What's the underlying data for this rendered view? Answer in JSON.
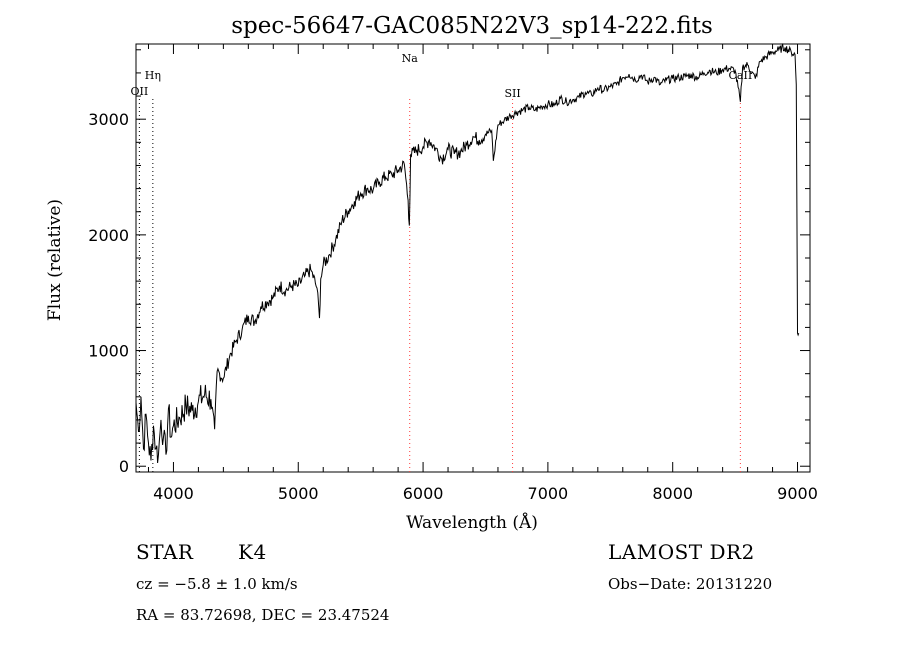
{
  "chart_data": {
    "type": "line",
    "title": "spec-56647-GAC085N22V3_sp14-222.fits",
    "xlabel": "Wavelength (Å)",
    "ylabel": "Flux (relative)",
    "xlim": [
      3700,
      9100
    ],
    "ylim": [
      -50,
      3650
    ],
    "x_ticks": [
      4000,
      5000,
      6000,
      7000,
      8000,
      9000
    ],
    "x_tick_labels": [
      "4000",
      "5000",
      "6000",
      "7000",
      "8000",
      "9000"
    ],
    "y_ticks": [
      0,
      1000,
      2000,
      3000
    ],
    "y_tick_labels": [
      "0",
      "1000",
      "2000",
      "3000"
    ],
    "grid": false,
    "series": [
      {
        "color": "#000000",
        "x": [
          3700,
          3720,
          3740,
          3760,
          3780,
          3800,
          3820,
          3840,
          3860,
          3880,
          3900,
          3920,
          3940,
          3960,
          3980,
          4000,
          4050,
          4100,
          4150,
          4200,
          4250,
          4300,
          4330,
          4350,
          4400,
          4450,
          4500,
          4550,
          4600,
          4650,
          4700,
          4750,
          4800,
          4850,
          4900,
          4950,
          5000,
          5050,
          5100,
          5150,
          5170,
          5180,
          5200,
          5250,
          5300,
          5350,
          5400,
          5450,
          5500,
          5550,
          5600,
          5650,
          5700,
          5750,
          5800,
          5850,
          5880,
          5890,
          5900,
          5950,
          6000,
          6050,
          6100,
          6150,
          6200,
          6250,
          6300,
          6350,
          6400,
          6450,
          6500,
          6550,
          6563,
          6600,
          6650,
          6700,
          6750,
          6800,
          6850,
          6900,
          6950,
          7000,
          7050,
          7100,
          7150,
          7200,
          7250,
          7300,
          7350,
          7400,
          7450,
          7500,
          7550,
          7600,
          7650,
          7700,
          7750,
          7800,
          7850,
          7900,
          7950,
          8000,
          8050,
          8100,
          8150,
          8200,
          8250,
          8300,
          8350,
          8400,
          8450,
          8500,
          8542,
          8560,
          8600,
          8662,
          8700,
          8750,
          8800,
          8850,
          8900,
          8950,
          8980,
          8990,
          9000,
          9010
        ],
        "y": [
          550,
          300,
          600,
          150,
          450,
          200,
          50,
          350,
          150,
          100,
          400,
          250,
          100,
          500,
          250,
          350,
          420,
          520,
          480,
          560,
          620,
          580,
          320,
          820,
          760,
          950,
          1080,
          1180,
          1300,
          1250,
          1380,
          1420,
          1460,
          1560,
          1520,
          1560,
          1560,
          1640,
          1700,
          1540,
          1280,
          1620,
          1740,
          1830,
          1960,
          2120,
          2210,
          2290,
          2360,
          2400,
          2390,
          2460,
          2500,
          2520,
          2560,
          2610,
          2300,
          2080,
          2690,
          2730,
          2760,
          2820,
          2750,
          2660,
          2740,
          2700,
          2720,
          2780,
          2850,
          2820,
          2870,
          2900,
          2640,
          2950,
          2990,
          3030,
          3060,
          3080,
          3100,
          3080,
          3110,
          3130,
          3120,
          3180,
          3150,
          3170,
          3190,
          3230,
          3210,
          3270,
          3250,
          3280,
          3300,
          3360,
          3390,
          3340,
          3380,
          3320,
          3360,
          3300,
          3340,
          3350,
          3360,
          3370,
          3380,
          3360,
          3400,
          3420,
          3400,
          3430,
          3440,
          3420,
          3150,
          3450,
          3470,
          3350,
          3500,
          3540,
          3580,
          3600,
          3620,
          3580,
          3560,
          3300,
          1150,
          1150
        ]
      }
    ],
    "lines": [
      {
        "label": "OII",
        "x": 3727,
        "color": "#000000"
      },
      {
        "label": "Hη",
        "x": 3835,
        "color": "#000000"
      },
      {
        "label": "Na",
        "x": 5893,
        "color": "#ff3c3c"
      },
      {
        "label": "SII",
        "x": 6717,
        "color": "#ff3c3c"
      },
      {
        "label": "CaII",
        "x": 8542,
        "color": "#ff3c3c"
      }
    ]
  },
  "info": {
    "class": "STAR",
    "subclass": "K4",
    "survey": "LAMOST DR2",
    "cz": "cz = −5.8 ± 1.0 km/s",
    "obs_date": "Obs−Date: 20131220",
    "coords": "RA =  83.72698, DEC =  23.47524"
  }
}
